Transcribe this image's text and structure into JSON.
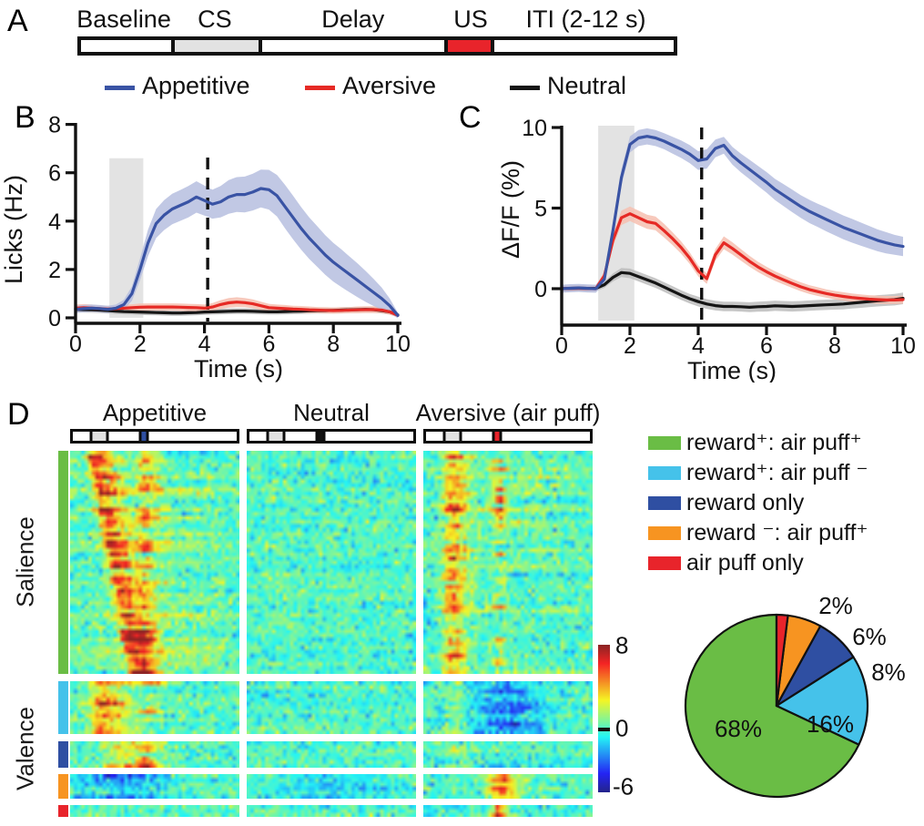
{
  "panels": {
    "a": "A",
    "b": "B",
    "c": "C",
    "d": "D"
  },
  "panel_a": {
    "timeline": {
      "segments": [
        {
          "name": "baseline",
          "label": "Baseline",
          "color": "#ffffff",
          "from": 0.0,
          "to": 0.155
        },
        {
          "name": "cs",
          "label": "CS",
          "color": "#e2e2e2",
          "from": 0.155,
          "to": 0.303
        },
        {
          "name": "delay",
          "label": "Delay",
          "color": "#ffffff",
          "from": 0.303,
          "to": 0.616
        },
        {
          "name": "us",
          "label": "US",
          "color": "#e8242b",
          "from": 0.616,
          "to": 0.695
        },
        {
          "name": "iti",
          "label": "ITI (2-12 s)",
          "color": "#ffffff",
          "from": 0.695,
          "to": 1.0
        }
      ]
    },
    "legend": [
      {
        "label": "Appetitive",
        "color": "#3953a4"
      },
      {
        "label": "Aversive",
        "color": "#e62a25"
      },
      {
        "label": "Neutral",
        "color": "#151515"
      }
    ]
  },
  "chart_data": [
    {
      "id": "licks",
      "type": "line",
      "panel": "B",
      "title": "",
      "xlabel": "Time (s)",
      "ylabel": "Licks (Hz)",
      "xlim": [
        0,
        10
      ],
      "ylim": [
        0,
        8
      ],
      "xticks": [
        0,
        2,
        4,
        6,
        8,
        10
      ],
      "yticks": [
        0,
        2,
        4,
        6,
        8
      ],
      "cs_window": [
        1.05,
        2.1
      ],
      "cs_top": 6.6,
      "us_time": 4.1,
      "x_step": 0.25,
      "series": [
        {
          "name": "Neutral",
          "color": "#151515",
          "band_color": "#bdbdbd",
          "y": [
            0.35,
            0.34,
            0.33,
            0.32,
            0.3,
            0.28,
            0.26,
            0.25,
            0.24,
            0.23,
            0.22,
            0.21,
            0.2,
            0.2,
            0.21,
            0.22,
            0.24,
            0.25,
            0.26,
            0.27,
            0.28,
            0.28,
            0.27,
            0.26,
            0.25,
            0.25,
            0.26,
            0.27,
            0.28,
            0.29,
            0.3,
            0.3,
            0.31,
            0.32,
            0.33,
            0.34,
            0.35,
            0.34,
            0.3,
            0.25,
            0.12
          ],
          "band": [
            0.12,
            0.12,
            0.12,
            0.12,
            0.12,
            0.12,
            0.12,
            0.12,
            0.12,
            0.12,
            0.12,
            0.12,
            0.12,
            0.12,
            0.12,
            0.12,
            0.12,
            0.12,
            0.12,
            0.12,
            0.12,
            0.12,
            0.12,
            0.12,
            0.12,
            0.12,
            0.12,
            0.12,
            0.12,
            0.12,
            0.12,
            0.12,
            0.12,
            0.12,
            0.12,
            0.12,
            0.12,
            0.12,
            0.12,
            0.12,
            0.08
          ]
        },
        {
          "name": "Aversive",
          "color": "#e62a25",
          "band_color": "#f6c0b0",
          "y": [
            0.4,
            0.42,
            0.4,
            0.38,
            0.36,
            0.38,
            0.4,
            0.42,
            0.44,
            0.45,
            0.45,
            0.45,
            0.45,
            0.44,
            0.43,
            0.42,
            0.4,
            0.45,
            0.55,
            0.62,
            0.65,
            0.63,
            0.58,
            0.5,
            0.42,
            0.4,
            0.38,
            0.36,
            0.35,
            0.33,
            0.32,
            0.31,
            0.3,
            0.31,
            0.32,
            0.33,
            0.34,
            0.34,
            0.32,
            0.25,
            0.1
          ],
          "band": [
            0.15,
            0.15,
            0.15,
            0.14,
            0.14,
            0.14,
            0.14,
            0.14,
            0.15,
            0.15,
            0.15,
            0.15,
            0.15,
            0.15,
            0.15,
            0.15,
            0.15,
            0.16,
            0.18,
            0.2,
            0.2,
            0.19,
            0.18,
            0.17,
            0.16,
            0.15,
            0.15,
            0.14,
            0.14,
            0.14,
            0.13,
            0.13,
            0.13,
            0.13,
            0.13,
            0.14,
            0.14,
            0.14,
            0.13,
            0.12,
            0.08
          ]
        },
        {
          "name": "Appetitive",
          "color": "#3953a4",
          "band_color": "#b6bedf",
          "y": [
            0.35,
            0.38,
            0.4,
            0.38,
            0.35,
            0.4,
            0.55,
            1.0,
            2.0,
            3.1,
            3.9,
            4.25,
            4.5,
            4.65,
            4.8,
            5.0,
            4.85,
            4.7,
            4.8,
            5.0,
            5.1,
            5.1,
            5.2,
            5.35,
            5.3,
            5.05,
            4.6,
            4.15,
            3.7,
            3.3,
            2.95,
            2.6,
            2.3,
            2.05,
            1.8,
            1.55,
            1.3,
            1.05,
            0.8,
            0.5,
            0.1
          ],
          "band": [
            0.15,
            0.15,
            0.15,
            0.15,
            0.15,
            0.15,
            0.2,
            0.3,
            0.45,
            0.55,
            0.6,
            0.62,
            0.63,
            0.64,
            0.65,
            0.65,
            0.62,
            0.6,
            0.65,
            0.7,
            0.72,
            0.74,
            0.76,
            0.78,
            0.82,
            0.86,
            0.9,
            0.9,
            0.88,
            0.86,
            0.84,
            0.82,
            0.8,
            0.78,
            0.74,
            0.7,
            0.64,
            0.56,
            0.45,
            0.3,
            0.12
          ]
        }
      ]
    },
    {
      "id": "dff",
      "type": "line",
      "panel": "C",
      "title": "",
      "xlabel": "Time (s)",
      "ylabel": "ΔF/F (%)",
      "xlim": [
        0,
        10
      ],
      "ylim": [
        -2.3,
        10
      ],
      "xticks": [
        0,
        2,
        4,
        6,
        8,
        10
      ],
      "yticks": [
        0,
        5,
        10
      ],
      "cs_window": [
        1.07,
        2.13
      ],
      "cs_top": null,
      "us_time": 4.1,
      "x_step": 0.25,
      "series": [
        {
          "name": "Neutral",
          "color": "#151515",
          "band_color": "#bdbdbd",
          "y": [
            0.0,
            0.02,
            0.03,
            0.02,
            0.02,
            0.25,
            0.7,
            1.0,
            0.95,
            0.75,
            0.55,
            0.35,
            0.1,
            -0.15,
            -0.4,
            -0.62,
            -0.8,
            -0.95,
            -1.05,
            -1.1,
            -1.1,
            -1.12,
            -1.15,
            -1.12,
            -1.1,
            -1.06,
            -1.08,
            -1.1,
            -1.08,
            -1.05,
            -1.02,
            -1.0,
            -0.98,
            -0.95,
            -0.9,
            -0.85,
            -0.8,
            -0.75,
            -0.72,
            -0.68,
            -0.6
          ],
          "band": [
            0.18,
            0.18,
            0.18,
            0.18,
            0.18,
            0.2,
            0.25,
            0.28,
            0.3,
            0.3,
            0.3,
            0.3,
            0.3,
            0.3,
            0.3,
            0.3,
            0.3,
            0.3,
            0.3,
            0.3,
            0.3,
            0.3,
            0.31,
            0.31,
            0.32,
            0.32,
            0.32,
            0.32,
            0.32,
            0.32,
            0.32,
            0.32,
            0.32,
            0.33,
            0.33,
            0.34,
            0.34,
            0.35,
            0.35,
            0.36,
            0.36
          ]
        },
        {
          "name": "Aversive",
          "color": "#e62a25",
          "band_color": "#f6c0b0",
          "y": [
            0.0,
            0.02,
            0.03,
            0.01,
            0.0,
            0.8,
            3.0,
            4.4,
            4.65,
            4.4,
            4.15,
            4.05,
            3.6,
            3.1,
            2.55,
            1.9,
            1.1,
            0.62,
            2.1,
            2.85,
            2.5,
            2.1,
            1.7,
            1.35,
            1.05,
            0.78,
            0.55,
            0.33,
            0.12,
            -0.05,
            -0.18,
            -0.3,
            -0.4,
            -0.48,
            -0.55,
            -0.6,
            -0.65,
            -0.68,
            -0.7,
            -0.7,
            -0.68
          ],
          "band": [
            0.2,
            0.2,
            0.2,
            0.2,
            0.2,
            0.25,
            0.4,
            0.45,
            0.45,
            0.45,
            0.44,
            0.43,
            0.42,
            0.4,
            0.38,
            0.36,
            0.34,
            0.32,
            0.36,
            0.4,
            0.38,
            0.36,
            0.34,
            0.32,
            0.31,
            0.3,
            0.29,
            0.28,
            0.28,
            0.27,
            0.27,
            0.26,
            0.26,
            0.26,
            0.25,
            0.25,
            0.25,
            0.25,
            0.25,
            0.25,
            0.25
          ]
        },
        {
          "name": "Appetitive",
          "color": "#3953a4",
          "band_color": "#b6bedf",
          "y": [
            0.0,
            0.03,
            0.05,
            0.02,
            0.0,
            0.6,
            3.6,
            6.9,
            8.95,
            9.35,
            9.45,
            9.35,
            9.15,
            8.9,
            8.65,
            8.35,
            7.95,
            8.05,
            8.7,
            8.9,
            8.25,
            7.8,
            7.4,
            7.0,
            6.6,
            6.15,
            5.8,
            5.45,
            5.1,
            4.8,
            4.55,
            4.3,
            4.05,
            3.8,
            3.6,
            3.4,
            3.2,
            3.0,
            2.85,
            2.72,
            2.62
          ],
          "band": [
            0.25,
            0.25,
            0.25,
            0.25,
            0.25,
            0.3,
            0.45,
            0.5,
            0.5,
            0.5,
            0.5,
            0.5,
            0.5,
            0.52,
            0.54,
            0.56,
            0.58,
            0.6,
            0.55,
            0.52,
            0.55,
            0.58,
            0.6,
            0.62,
            0.64,
            0.66,
            0.68,
            0.7,
            0.7,
            0.72,
            0.72,
            0.74,
            0.74,
            0.74,
            0.74,
            0.72,
            0.7,
            0.68,
            0.66,
            0.62,
            0.6
          ]
        }
      ]
    },
    {
      "id": "ensemble-heatmap",
      "type": "heatmap",
      "panel": "D",
      "columns": [
        {
          "key": "appetitive",
          "name": "Appetitive",
          "us_color": "#2f4fa2"
        },
        {
          "key": "neutral",
          "name": "Neutral",
          "us_color": "#111111"
        },
        {
          "key": "aversive",
          "name": "Aversive (air puff)",
          "us_color": "#e8242b"
        }
      ],
      "row_groups": [
        {
          "name": "reward+ : air puff+",
          "color": "#6abd45",
          "rows": 55,
          "section": "Salience"
        },
        {
          "name": "reward+ : air puff-",
          "color": "#45c2ea",
          "rows": 13,
          "section": "Valence"
        },
        {
          "name": "reward only",
          "color": "#2f4fa2",
          "rows": 7,
          "section": "Valence"
        },
        {
          "name": "reward- : air puff+",
          "color": "#f79421",
          "rows": 6,
          "section": "Valence"
        },
        {
          "name": "air puff only",
          "color": "#e8242b",
          "rows": 3,
          "section": "Valence"
        }
      ],
      "section_labels": [
        "Salience",
        "Valence"
      ],
      "cols": 47,
      "t_range": [
        0,
        10
      ],
      "value_range": [
        -6,
        8
      ],
      "colorbar_ticks": [
        "8",
        "0",
        "-6"
      ],
      "minibar": {
        "cs_from": 0.11,
        "cs_to": 0.21,
        "us_from": 0.41,
        "us_to": 0.455,
        "cs_color": "#e2e2e2"
      },
      "noise_sd": 0.85,
      "responses": {
        "appetitive": {
          "g0": [
            {
              "stagger": true,
              "t0": 1.35,
              "t1": 3.8,
              "sigma": 0.28,
              "tail": 3.0,
              "amp": 5.2,
              "ampJit": 1.8
            },
            {
              "t": 4.4,
              "sigma": 0.3,
              "tail": 1.8,
              "amp": 3.4,
              "ampJit": 1.8,
              "prob": 0.75
            },
            {
              "t": 5.0,
              "sigma": 3.5,
              "amp": 1.2,
              "ampJit": 0.8,
              "prob": 0.7
            }
          ],
          "g1": [
            {
              "t": 1.9,
              "sigma": 0.5,
              "tail": 2.2,
              "amp": 3.8,
              "ampJit": 1.5
            },
            {
              "t": 4.6,
              "sigma": 0.5,
              "tail": 1.5,
              "amp": 2.4,
              "ampJit": 2.0,
              "prob": 0.6
            }
          ],
          "g2": [
            {
              "t": 3.3,
              "sigma": 1.1,
              "tail": 1.5,
              "amp": 2.4,
              "ampJit": 1.0
            },
            {
              "t": 4.5,
              "sigma": 0.4,
              "amp": 2.6,
              "ampJit": 1.4,
              "prob": 0.7
            }
          ],
          "g3": [
            {
              "t": 3.0,
              "sigma": 1.8,
              "amp": -2.0,
              "ampJit": 0.8
            }
          ],
          "g4": []
        },
        "neutral": {
          "g0": [
            {
              "t": 1.8,
              "sigma": 0.5,
              "amp": 0.5,
              "ampJit": 0.6,
              "prob": 0.5
            }
          ],
          "g1": [],
          "g2": [],
          "g3": [
            {
              "t": 5.0,
              "sigma": 3.0,
              "amp": -0.9,
              "ampJit": 0.5
            }
          ],
          "g4": []
        },
        "aversive": {
          "g0": [
            {
              "t": 1.65,
              "sigma": 0.35,
              "tail": 2.0,
              "amp": 3.6,
              "ampJit": 1.8
            },
            {
              "t": 4.5,
              "sigma": 0.3,
              "amp": 3.6,
              "ampJit": 2.6,
              "prob": 0.5
            },
            {
              "t": 6.0,
              "sigma": 3.0,
              "amp": 0.8,
              "ampJit": 0.6,
              "prob": 0.6
            }
          ],
          "g1": [
            {
              "t": 1.85,
              "sigma": 0.4,
              "amp": 1.2,
              "ampJit": 0.8
            },
            {
              "t": 4.9,
              "sigma": 1.3,
              "amp": -2.4,
              "ampJit": 1.2
            }
          ],
          "g2": [
            {
              "t": 1.8,
              "sigma": 0.4,
              "amp": 0.8,
              "ampJit": 0.6,
              "prob": 0.5
            }
          ],
          "g3": [
            {
              "t": 4.5,
              "sigma": 0.5,
              "tail": 1.6,
              "amp": 4.2,
              "ampJit": 1.6
            }
          ],
          "g4": [
            {
              "t": 4.45,
              "sigma": 0.3,
              "tail": 1.5,
              "amp": 6.4,
              "ampJit": 1.0
            }
          ]
        }
      }
    },
    {
      "id": "response-pie",
      "type": "pie",
      "values": [
        68,
        16,
        8,
        6,
        2
      ],
      "labels": [
        "68%",
        "16%",
        "8%",
        "6%",
        "2%"
      ],
      "colors": [
        "#6abd45",
        "#45c2ea",
        "#2f4fa2",
        "#f79421",
        "#e8242b"
      ],
      "start_angle_deg": 90,
      "direction": "ccw",
      "legend": [
        {
          "label": "reward⁺: air puff⁺",
          "color": "#6abd45"
        },
        {
          "label": "reward⁺: air puff ⁻",
          "color": "#45c2ea"
        },
        {
          "label": "reward only",
          "color": "#2f4fa2"
        },
        {
          "label": "reward ⁻: air puff⁺",
          "color": "#f79421"
        },
        {
          "label": "air puff only",
          "color": "#e8242b"
        }
      ]
    }
  ]
}
